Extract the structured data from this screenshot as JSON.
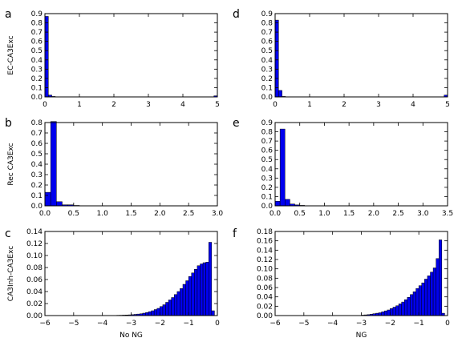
{
  "figure": {
    "bar_color": "#0000ee",
    "edge_color": "#000000"
  },
  "chart_data": [
    {
      "id": "a",
      "type": "bar",
      "panel_label": "a",
      "ylabel": "EC-CA3Exc",
      "xlabel": "",
      "xlim": [
        0,
        5
      ],
      "ylim": [
        0,
        0.9
      ],
      "bin_width": 0.1,
      "xticks": [
        0,
        1,
        2,
        3,
        4,
        5
      ],
      "xtick_labels": [
        "0",
        "1",
        "2",
        "3",
        "4",
        "5"
      ],
      "yticks": [
        0,
        0.1,
        0.2,
        0.3,
        0.4,
        0.5,
        0.6,
        0.7,
        0.8,
        0.9
      ],
      "ytick_labels": [
        "0.0",
        "0.1",
        "0.2",
        "0.3",
        "0.4",
        "0.5",
        "0.6",
        "0.7",
        "0.8",
        "0.9"
      ],
      "bins": [
        [
          0,
          0.87
        ],
        [
          0.1,
          0.02
        ],
        [
          0.2,
          0.005
        ],
        [
          4.9,
          0.012
        ]
      ]
    },
    {
      "id": "b",
      "type": "bar",
      "panel_label": "b",
      "ylabel": "Rec CA3Exc",
      "xlabel": "",
      "xlim": [
        0,
        3
      ],
      "ylim": [
        0,
        0.8
      ],
      "bin_width": 0.1,
      "xticks": [
        0,
        0.5,
        1,
        1.5,
        2,
        2.5,
        3
      ],
      "xtick_labels": [
        "0.0",
        "0.5",
        "1.0",
        "1.5",
        "2.0",
        "2.5",
        "3.0"
      ],
      "yticks": [
        0,
        0.1,
        0.2,
        0.3,
        0.4,
        0.5,
        0.6,
        0.7,
        0.8
      ],
      "ytick_labels": [
        "0.0",
        "0.1",
        "0.2",
        "0.3",
        "0.4",
        "0.5",
        "0.6",
        "0.7",
        "0.8"
      ],
      "bins": [
        [
          0,
          0.13
        ],
        [
          0.1,
          0.81
        ],
        [
          0.2,
          0.04
        ],
        [
          0.3,
          0.01
        ],
        [
          0.4,
          0.01
        ],
        [
          0.5,
          0.004
        ]
      ]
    },
    {
      "id": "c",
      "type": "bar",
      "panel_label": "c",
      "ylabel": "CA3Inh-CA3Exc",
      "xlabel": "No NG",
      "xlim": [
        -6,
        0
      ],
      "ylim": [
        0,
        0.14
      ],
      "bin_width": 0.1,
      "xticks": [
        -6,
        -5,
        -4,
        -3,
        -2,
        -1,
        0
      ],
      "xtick_labels": [
        "−6",
        "−5",
        "−4",
        "−3",
        "−2",
        "−1",
        "0"
      ],
      "yticks": [
        0,
        0.02,
        0.04,
        0.06,
        0.08,
        0.1,
        0.12,
        0.14
      ],
      "ytick_labels": [
        "0.00",
        "0.02",
        "0.04",
        "0.06",
        "0.08",
        "0.10",
        "0.12",
        "0.14"
      ],
      "bins": [
        [
          -3.6,
          0.0003
        ],
        [
          -3.5,
          0.0005
        ],
        [
          -3.4,
          0.0006
        ],
        [
          -3.3,
          0.0008
        ],
        [
          -3.2,
          0.001
        ],
        [
          -3.1,
          0.0012
        ],
        [
          -3.0,
          0.0015
        ],
        [
          -2.9,
          0.002
        ],
        [
          -2.8,
          0.0025
        ],
        [
          -2.7,
          0.003
        ],
        [
          -2.6,
          0.004
        ],
        [
          -2.5,
          0.005
        ],
        [
          -2.4,
          0.0065
        ],
        [
          -2.3,
          0.008
        ],
        [
          -2.2,
          0.01
        ],
        [
          -2.1,
          0.012
        ],
        [
          -2.0,
          0.015
        ],
        [
          -1.9,
          0.018
        ],
        [
          -1.8,
          0.022
        ],
        [
          -1.7,
          0.026
        ],
        [
          -1.6,
          0.03
        ],
        [
          -1.5,
          0.035
        ],
        [
          -1.4,
          0.04
        ],
        [
          -1.3,
          0.045
        ],
        [
          -1.2,
          0.052
        ],
        [
          -1.1,
          0.058
        ],
        [
          -1.0,
          0.065
        ],
        [
          -0.9,
          0.071
        ],
        [
          -0.8,
          0.077
        ],
        [
          -0.7,
          0.083
        ],
        [
          -0.6,
          0.086
        ],
        [
          -0.5,
          0.088
        ],
        [
          -0.4,
          0.089
        ],
        [
          -0.3,
          0.122
        ],
        [
          -0.2,
          0.008
        ]
      ]
    },
    {
      "id": "d",
      "type": "bar",
      "panel_label": "d",
      "ylabel": "",
      "xlabel": "",
      "xlim": [
        0,
        5
      ],
      "ylim": [
        0,
        0.9
      ],
      "bin_width": 0.1,
      "xticks": [
        0,
        1,
        2,
        3,
        4,
        5
      ],
      "xtick_labels": [
        "0",
        "1",
        "2",
        "3",
        "4",
        "5"
      ],
      "yticks": [
        0,
        0.1,
        0.2,
        0.3,
        0.4,
        0.5,
        0.6,
        0.7,
        0.8,
        0.9
      ],
      "ytick_labels": [
        "0.0",
        "0.1",
        "0.2",
        "0.3",
        "0.4",
        "0.5",
        "0.6",
        "0.7",
        "0.8",
        "0.9"
      ],
      "bins": [
        [
          0,
          0.83
        ],
        [
          0.1,
          0.07
        ],
        [
          0.2,
          0.005
        ],
        [
          4.9,
          0.02
        ]
      ]
    },
    {
      "id": "e",
      "type": "bar",
      "panel_label": "e",
      "ylabel": "",
      "xlabel": "",
      "xlim": [
        0,
        3.5
      ],
      "ylim": [
        0,
        0.9
      ],
      "bin_width": 0.1,
      "xticks": [
        0,
        0.5,
        1,
        1.5,
        2,
        2.5,
        3,
        3.5
      ],
      "xtick_labels": [
        "0.0",
        "0.5",
        "1.0",
        "1.5",
        "2.0",
        "2.5",
        "3.0",
        "3.5"
      ],
      "yticks": [
        0,
        0.1,
        0.2,
        0.3,
        0.4,
        0.5,
        0.6,
        0.7,
        0.8,
        0.9
      ],
      "ytick_labels": [
        "0.0",
        "0.1",
        "0.2",
        "0.3",
        "0.4",
        "0.5",
        "0.6",
        "0.7",
        "0.8",
        "0.9"
      ],
      "bins": [
        [
          0,
          0.05
        ],
        [
          0.1,
          0.83
        ],
        [
          0.2,
          0.07
        ],
        [
          0.3,
          0.02
        ],
        [
          0.4,
          0.01
        ],
        [
          0.5,
          0.005
        ]
      ]
    },
    {
      "id": "f",
      "type": "bar",
      "panel_label": "f",
      "ylabel": "",
      "xlabel": "NG",
      "xlim": [
        -6,
        0
      ],
      "ylim": [
        0,
        0.18
      ],
      "bin_width": 0.1,
      "xticks": [
        -6,
        -5,
        -4,
        -3,
        -2,
        -1,
        0
      ],
      "xtick_labels": [
        "−6",
        "−5",
        "−4",
        "−3",
        "−2",
        "−1",
        "0"
      ],
      "yticks": [
        0,
        0.02,
        0.04,
        0.06,
        0.08,
        0.1,
        0.12,
        0.14,
        0.16,
        0.18
      ],
      "ytick_labels": [
        "0.00",
        "0.02",
        "0.04",
        "0.06",
        "0.08",
        "0.10",
        "0.12",
        "0.14",
        "0.16",
        "0.18"
      ],
      "bins": [
        [
          -3.0,
          0.001
        ],
        [
          -2.9,
          0.0015
        ],
        [
          -2.8,
          0.002
        ],
        [
          -2.7,
          0.003
        ],
        [
          -2.6,
          0.004
        ],
        [
          -2.5,
          0.005
        ],
        [
          -2.4,
          0.006
        ],
        [
          -2.3,
          0.008
        ],
        [
          -2.2,
          0.01
        ],
        [
          -2.1,
          0.012
        ],
        [
          -2.0,
          0.015
        ],
        [
          -1.9,
          0.018
        ],
        [
          -1.8,
          0.021
        ],
        [
          -1.7,
          0.025
        ],
        [
          -1.6,
          0.029
        ],
        [
          -1.5,
          0.034
        ],
        [
          -1.4,
          0.039
        ],
        [
          -1.3,
          0.045
        ],
        [
          -1.2,
          0.051
        ],
        [
          -1.1,
          0.058
        ],
        [
          -1.0,
          0.064
        ],
        [
          -0.9,
          0.07
        ],
        [
          -0.8,
          0.078
        ],
        [
          -0.7,
          0.085
        ],
        [
          -0.6,
          0.093
        ],
        [
          -0.5,
          0.102
        ],
        [
          -0.4,
          0.122
        ],
        [
          -0.3,
          0.162
        ],
        [
          -0.2,
          0.005
        ]
      ]
    }
  ]
}
